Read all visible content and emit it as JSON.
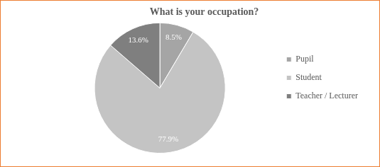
{
  "chart_data": {
    "type": "pie",
    "title": "What is your occupation?",
    "categories": [
      "Pupil",
      "Student",
      "Teacher / Lecturer"
    ],
    "values": [
      8.5,
      77.9,
      13.6
    ],
    "value_labels": [
      "8.5%",
      "77.9%",
      "13.6%"
    ],
    "colors": [
      "#a5a5a5",
      "#c4c4c4",
      "#7f7f7f"
    ],
    "legend": "right",
    "data_labels": true
  }
}
